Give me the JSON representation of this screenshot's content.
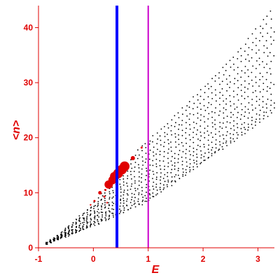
{
  "chart_data": {
    "type": "scatter",
    "xlabel": "E",
    "ylabel": "<n>",
    "xlim": [
      -1,
      3.3
    ],
    "ylim": [
      0,
      44
    ],
    "x_ticks": [
      "-1",
      "0",
      "1",
      "2",
      "3"
    ],
    "y_ticks": [
      "0",
      "10",
      "20",
      "30",
      "40"
    ],
    "colors": {
      "axes": "#e00000",
      "points": "#000000",
      "highlight": "#e00000"
    },
    "reference_lines": [
      {
        "x": 0.43,
        "color": "#0000ff"
      },
      {
        "x": 1.0,
        "color": "#cc00cc"
      }
    ],
    "band_lower_edge": [
      [
        -0.85,
        0.8
      ],
      [
        0.0,
        4.0
      ],
      [
        0.5,
        6.3
      ],
      [
        1.0,
        8.5
      ],
      [
        1.5,
        12.0
      ],
      [
        2.0,
        15.5
      ],
      [
        2.5,
        19.0
      ],
      [
        3.0,
        22.5
      ],
      [
        3.3,
        25.0
      ]
    ],
    "band_upper_edge": [
      [
        -0.85,
        0.8
      ],
      [
        -0.5,
        3.5
      ],
      [
        0.0,
        8.0
      ],
      [
        0.4,
        12.5
      ],
      [
        0.8,
        17.5
      ],
      [
        1.5,
        24.0
      ],
      [
        2.0,
        29.0
      ],
      [
        2.5,
        34.0
      ],
      [
        3.0,
        40.0
      ],
      [
        3.3,
        44.0
      ]
    ],
    "band_density_rows": 16,
    "band_density_cols": 62,
    "highlighted_points": [
      {
        "x": 0.28,
        "y": 11.5,
        "size": 6
      },
      {
        "x": 0.35,
        "y": 12.3,
        "size": 6
      },
      {
        "x": 0.38,
        "y": 13.0,
        "size": 6
      },
      {
        "x": 0.45,
        "y": 13.5,
        "size": 7
      },
      {
        "x": 0.52,
        "y": 14.2,
        "size": 7
      },
      {
        "x": 0.57,
        "y": 14.8,
        "size": 7
      },
      {
        "x": 0.42,
        "y": 12.8,
        "size": 4
      },
      {
        "x": 0.72,
        "y": 16.3,
        "size": 3
      },
      {
        "x": 0.88,
        "y": 18.2,
        "size": 1.5
      },
      {
        "x": 0.12,
        "y": 10.0,
        "size": 2.5
      },
      {
        "x": 0.2,
        "y": 9.3,
        "size": 1.5
      },
      {
        "x": 0.02,
        "y": 8.5,
        "size": 1.5
      },
      {
        "x": -0.05,
        "y": 7.8,
        "size": 1.2
      },
      {
        "x": 0.25,
        "y": 8.2,
        "size": 1.2
      },
      {
        "x": 0.22,
        "y": 10.5,
        "size": 1.5
      }
    ]
  }
}
